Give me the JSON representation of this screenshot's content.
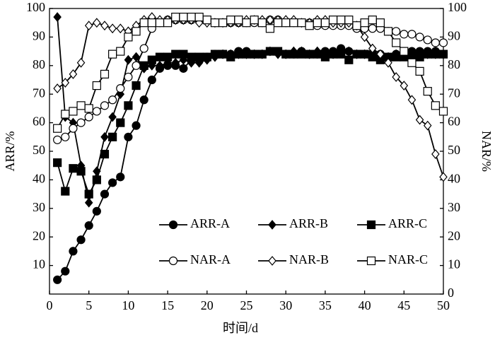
{
  "chart_data": {
    "type": "line",
    "xlabel": "时间/d",
    "ylabel": "ARR/%",
    "y2label": "NAR/%",
    "xlim": [
      0,
      50
    ],
    "xticks": [
      0,
      5,
      10,
      15,
      20,
      25,
      30,
      35,
      40,
      45,
      50
    ],
    "ylim": [
      0,
      100
    ],
    "yticks": [
      10,
      20,
      30,
      40,
      50,
      60,
      70,
      80,
      90,
      100
    ],
    "y2lim": [
      0,
      100
    ],
    "y2ticks": [
      0,
      10,
      20,
      30,
      40,
      50,
      60,
      70,
      80,
      90,
      100
    ],
    "x": [
      1,
      2,
      3,
      4,
      5,
      6,
      7,
      8,
      9,
      10,
      11,
      12,
      13,
      14,
      15,
      16,
      17,
      18,
      19,
      20,
      21,
      22,
      23,
      24,
      25,
      26,
      27,
      28,
      29,
      30,
      31,
      32,
      33,
      34,
      35,
      36,
      37,
      38,
      39,
      40,
      41,
      42,
      43,
      44,
      45,
      46,
      47,
      48,
      49,
      50
    ],
    "series": [
      {
        "name": "ARR-A",
        "color": "#000000",
        "marker": "circle",
        "marker_fill": "#000000",
        "values": [
          5,
          8,
          15,
          19,
          24,
          29,
          35,
          39,
          41,
          55,
          59,
          68,
          75,
          79,
          80,
          80,
          79,
          82,
          82,
          83,
          84,
          84,
          84,
          85,
          85,
          84,
          84,
          85,
          85,
          84,
          84,
          85,
          84,
          84,
          85,
          85,
          86,
          85,
          84,
          84,
          84,
          84,
          83,
          84,
          84,
          85,
          85,
          85,
          85,
          84
        ]
      },
      {
        "name": "ARR-B",
        "color": "#000000",
        "marker": "diamond",
        "marker_fill": "#000000",
        "values": [
          97,
          62,
          60,
          45,
          32,
          43,
          55,
          62,
          70,
          82,
          83,
          79,
          80,
          80,
          81,
          81,
          82,
          81,
          81,
          82,
          83,
          84,
          84,
          84,
          84,
          84,
          84,
          85,
          84,
          84,
          85,
          85,
          84,
          85,
          84,
          84,
          85,
          85,
          84,
          84,
          85,
          83,
          83,
          84,
          84,
          84,
          84,
          84,
          84,
          84
        ]
      },
      {
        "name": "ARR-C",
        "color": "#000000",
        "marker": "square",
        "marker_fill": "#000000",
        "values": [
          46,
          36,
          44,
          43,
          35,
          40,
          49,
          55,
          60,
          66,
          73,
          80,
          82,
          83,
          83,
          84,
          84,
          83,
          83,
          83,
          84,
          84,
          83,
          84,
          84,
          84,
          84,
          85,
          85,
          84,
          84,
          84,
          84,
          84,
          83,
          84,
          84,
          82,
          84,
          84,
          83,
          82,
          83,
          83,
          83,
          83,
          83,
          84,
          84,
          84
        ]
      },
      {
        "name": "NAR-A",
        "color": "#000000",
        "marker": "circle",
        "marker_fill": "#ffffff",
        "axis": "y2",
        "values": [
          54,
          55,
          58,
          60,
          62,
          64,
          66,
          68,
          72,
          76,
          80,
          86,
          93,
          95,
          96,
          96,
          96,
          96,
          96,
          96,
          95,
          95,
          95,
          95,
          95,
          95,
          95,
          96,
          96,
          95,
          95,
          95,
          95,
          94,
          94,
          94,
          94,
          94,
          93,
          93,
          93,
          93,
          92,
          92,
          91,
          91,
          90,
          89,
          88,
          88
        ]
      },
      {
        "name": "NAR-B",
        "color": "#000000",
        "marker": "diamond",
        "marker_fill": "#ffffff",
        "axis": "y2",
        "values": [
          72,
          74,
          77,
          81,
          94,
          95,
          94,
          93,
          93,
          92,
          94,
          96,
          97,
          96,
          96,
          96,
          96,
          96,
          95,
          95,
          95,
          95,
          95,
          95,
          96,
          96,
          96,
          96,
          96,
          96,
          96,
          95,
          95,
          96,
          96,
          95,
          95,
          95,
          94,
          90,
          86,
          84,
          81,
          76,
          73,
          68,
          61,
          59,
          49,
          41
        ]
      },
      {
        "name": "NAR-C",
        "color": "#000000",
        "marker": "square",
        "marker_fill": "#ffffff",
        "axis": "y2",
        "values": [
          58,
          63,
          64,
          66,
          65,
          73,
          77,
          84,
          85,
          90,
          92,
          95,
          95,
          95,
          95,
          97,
          97,
          97,
          97,
          96,
          95,
          95,
          96,
          96,
          95,
          96,
          95,
          93,
          95,
          95,
          95,
          95,
          94,
          95,
          95,
          96,
          96,
          96,
          94,
          95,
          96,
          95,
          92,
          88,
          85,
          81,
          78,
          71,
          66,
          64
        ]
      }
    ]
  }
}
